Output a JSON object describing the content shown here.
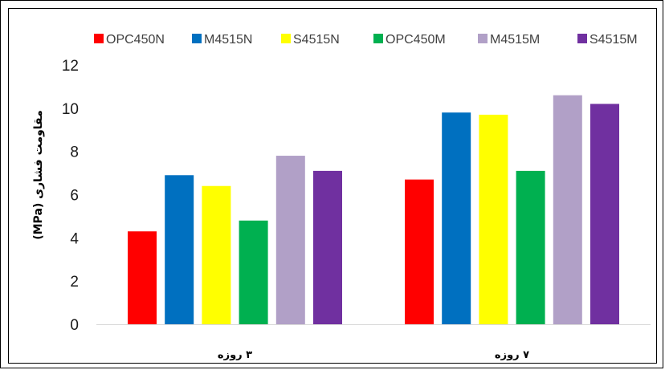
{
  "chart_data": {
    "type": "bar",
    "title": "",
    "xlabel": "",
    "ylabel": "مقاومت فشاری (MPa)",
    "categories": [
      "۳ روزه",
      "۷ روزه"
    ],
    "ylim": [
      0,
      12
    ],
    "yticks": [
      0,
      2,
      4,
      6,
      8,
      10,
      12
    ],
    "ytick_labels": [
      "0",
      "2",
      "4",
      "6",
      "8",
      "10",
      "12"
    ],
    "grid": false,
    "legend_position": "top",
    "series": [
      {
        "name": "OPC450N",
        "color": "#FF0000",
        "values": [
          4.3,
          6.7
        ]
      },
      {
        "name": "M4515N",
        "color": "#0070C0",
        "values": [
          6.9,
          9.8
        ]
      },
      {
        "name": "S4515N",
        "color": "#FFFF00",
        "values": [
          6.4,
          9.7
        ]
      },
      {
        "name": "OPC450M",
        "color": "#00B050",
        "values": [
          4.8,
          7.1
        ]
      },
      {
        "name": "M4515M",
        "color": "#B1A0C7",
        "values": [
          7.8,
          10.6
        ]
      },
      {
        "name": "S4515M",
        "color": "#7030A0",
        "values": [
          7.1,
          10.2
        ]
      }
    ]
  }
}
